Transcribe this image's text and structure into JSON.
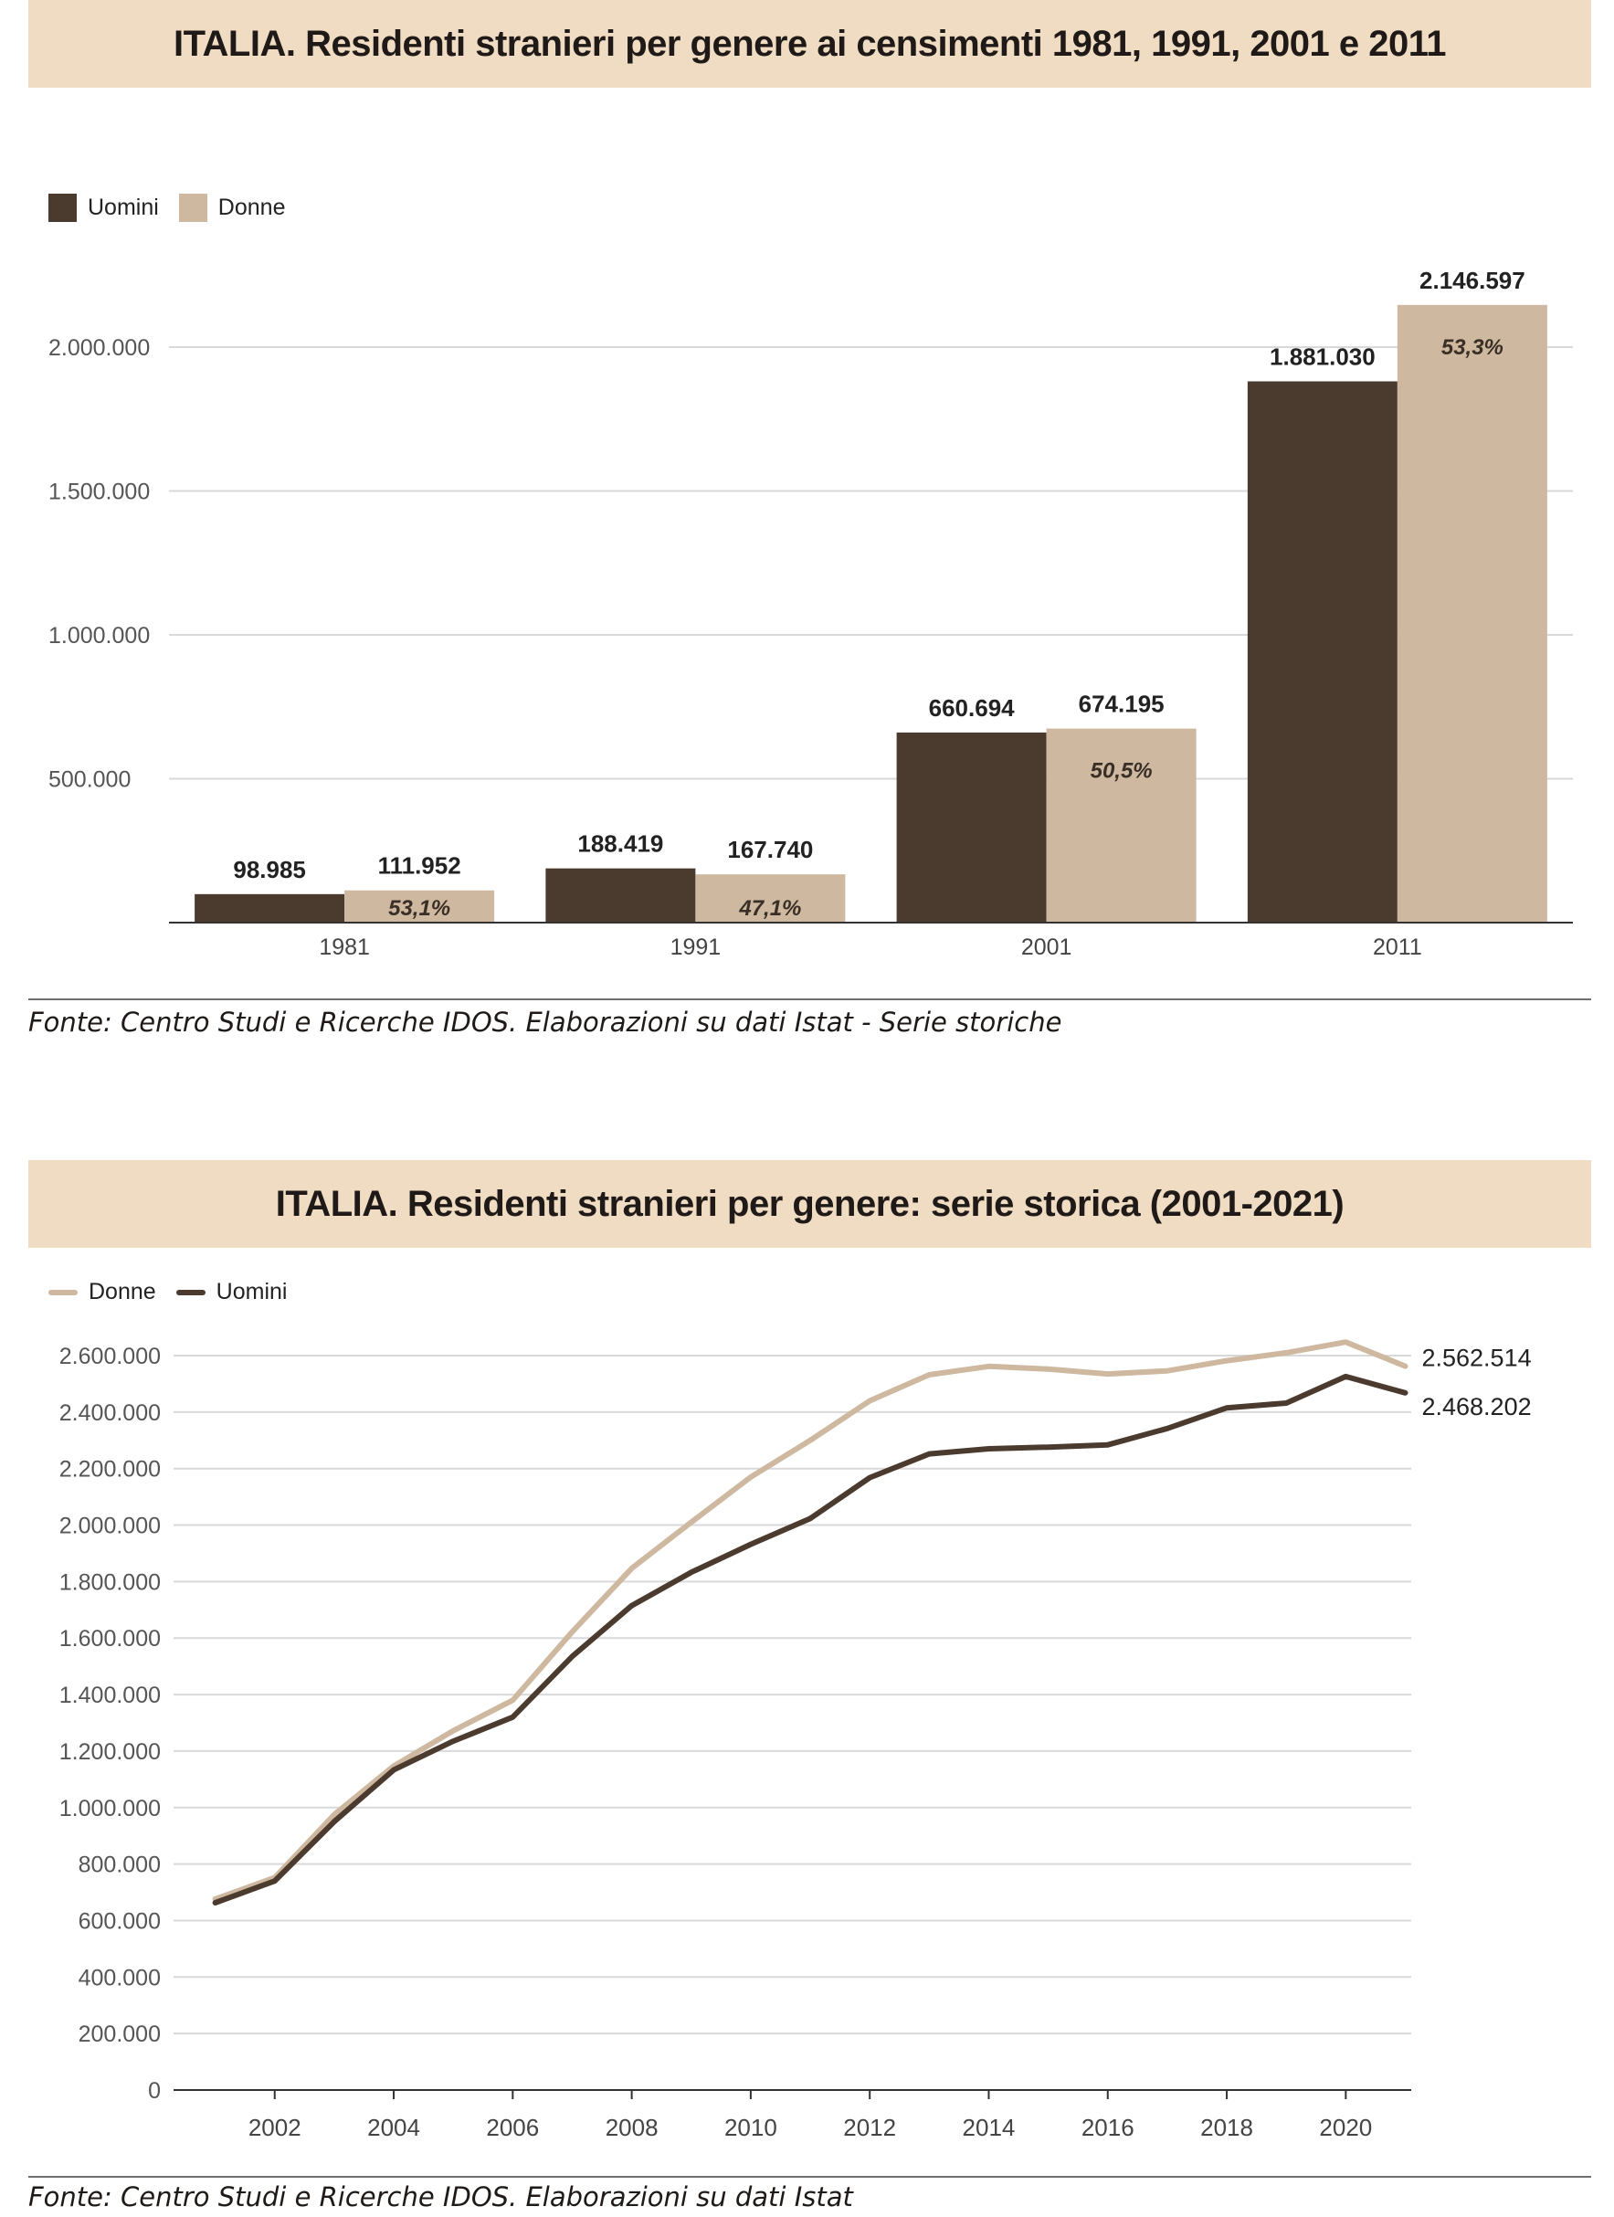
{
  "chart1": {
    "title": "ITALIA. Residenti stranieri per genere ai censimenti 1981, 1991, 2001 e 2011",
    "source": "Fonte: Centro Studi e Ricerche IDOS. Elaborazioni su dati Istat - Serie storiche",
    "legend": [
      {
        "label": "Uomini",
        "color": "#4b3a2e"
      },
      {
        "label": "Donne",
        "color": "#ceb8a0"
      }
    ]
  },
  "chart2": {
    "title": "ITALIA. Residenti stranieri per genere: serie storica (2001-2021)",
    "source": "Fonte: Centro Studi e Ricerche IDOS. Elaborazioni su dati Istat",
    "legend": [
      {
        "label": "Donne",
        "color": "#ceb8a0"
      },
      {
        "label": "Uomini",
        "color": "#4b3a2e"
      }
    ]
  },
  "chart_data": [
    {
      "type": "bar",
      "title": "ITALIA. Residenti stranieri per genere ai censimenti 1981, 1991, 2001 e 2011",
      "categories": [
        "1981",
        "1991",
        "2001",
        "2011"
      ],
      "series": [
        {
          "name": "Uomini",
          "values": [
            98985,
            188419,
            660694,
            1881030
          ],
          "labels": [
            "98.985",
            "188.419",
            "660.694",
            "1.881.030"
          ],
          "color": "#4b3a2e"
        },
        {
          "name": "Donne",
          "values": [
            111952,
            167740,
            674195,
            2146597
          ],
          "labels": [
            "111.952",
            "167.740",
            "674.195",
            "2.146.597"
          ],
          "pct": [
            "53,1%",
            "47,1%",
            "50,5%",
            "53,3%"
          ],
          "color": "#ceb8a0"
        }
      ],
      "ylim": [
        0,
        2000000
      ],
      "yticks": [
        500000,
        1000000,
        1500000,
        2000000
      ],
      "ytick_labels": [
        "500.000",
        "1.000.000",
        "1.500.000",
        "2.000.000"
      ],
      "grid": true,
      "legend": "top-left"
    },
    {
      "type": "line",
      "title": "ITALIA. Residenti stranieri per genere: serie storica (2001-2021)",
      "x": [
        2001,
        2002,
        2003,
        2004,
        2005,
        2006,
        2007,
        2008,
        2009,
        2010,
        2011,
        2012,
        2013,
        2014,
        2015,
        2016,
        2017,
        2018,
        2019,
        2020,
        2021
      ],
      "series": [
        {
          "name": "Donne",
          "color": "#ceb8a0",
          "values": [
            676000,
            752000,
            975000,
            1147000,
            1272000,
            1380000,
            1622000,
            1847000,
            2010000,
            2170000,
            2300000,
            2440000,
            2532000,
            2562000,
            2552000,
            2535000,
            2546000,
            2582000,
            2610000,
            2648000,
            2562514
          ],
          "end_label": "2.562.514"
        },
        {
          "name": "Uomini",
          "color": "#4b3a2e",
          "values": [
            663000,
            740000,
            950000,
            1133000,
            1235000,
            1320000,
            1535000,
            1715000,
            1833000,
            1932000,
            2023000,
            2168000,
            2252000,
            2270000,
            2276000,
            2284000,
            2342000,
            2415000,
            2432000,
            2526000,
            2468202
          ],
          "end_label": "2.468.202"
        }
      ],
      "ylim": [
        0,
        2600000
      ],
      "yticks": [
        0,
        200000,
        400000,
        600000,
        800000,
        1000000,
        1200000,
        1400000,
        1600000,
        1800000,
        2000000,
        2200000,
        2400000,
        2600000
      ],
      "ytick_labels": [
        "0",
        "200.000",
        "400.000",
        "600.000",
        "800.000",
        "1.000.000",
        "1.200.000",
        "1.400.000",
        "1.600.000",
        "1.800.000",
        "2.000.000",
        "2.200.000",
        "2.400.000",
        "2.600.000"
      ],
      "xticks": [
        2002,
        2004,
        2006,
        2008,
        2010,
        2012,
        2014,
        2016,
        2018,
        2020
      ],
      "xtick_labels": [
        "2002",
        "2004",
        "2006",
        "2008",
        "2010",
        "2012",
        "2014",
        "2016",
        "2018",
        "2020"
      ],
      "grid": true,
      "legend": "top-left"
    }
  ]
}
